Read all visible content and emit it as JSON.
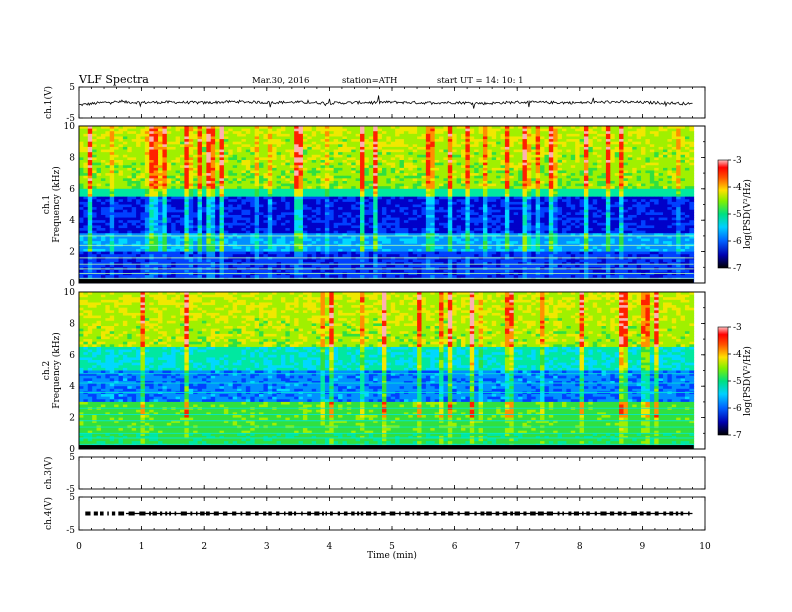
{
  "header": {
    "title": "VLF  Spectra",
    "date": "Mar.30, 2016",
    "station": "station=ATH",
    "start": "start  UT  =    14: 10: 1"
  },
  "chart_data": [
    {
      "type": "line",
      "name": "ch1-voltage",
      "ylabel": "ch.1(V)",
      "ylim": [
        -5,
        5
      ],
      "y_ticks": [
        "5",
        "-5"
      ],
      "x": [
        0,
        0.5,
        1,
        1.5,
        2,
        2.5,
        3,
        3.5,
        4,
        4.5,
        5,
        5.5,
        6,
        6.5,
        7,
        7.5,
        8,
        8.5,
        9,
        9.5,
        9.8
      ],
      "values": [
        -0.8,
        0.2,
        0.0,
        0.1,
        -0.1,
        0.3,
        0.0,
        0.1,
        -0.2,
        0.0,
        0.1,
        -0.1,
        0.0,
        -0.3,
        0.1,
        0.0,
        -0.1,
        0.2,
        0.0,
        -0.2,
        -0.5
      ]
    },
    {
      "type": "heatmap",
      "name": "ch1-spectrogram",
      "ylabel": "ch.1\nFrequency (kHz)",
      "ylim": [
        0,
        10
      ],
      "y_ticks": [
        "0",
        "2",
        "4",
        "6",
        "8",
        "10"
      ],
      "colorbar": {
        "label": "log(PSD(V²/Hz)",
        "range": [
          -7,
          -3
        ],
        "ticks": [
          "-3",
          "-4",
          "-5",
          "-6",
          "-7"
        ]
      }
    },
    {
      "type": "heatmap",
      "name": "ch2-spectrogram",
      "ylabel": "ch.2\nFrequency (kHz)",
      "ylim": [
        0,
        10
      ],
      "y_ticks": [
        "0",
        "2",
        "4",
        "6",
        "8",
        "10"
      ],
      "colorbar": {
        "label": "log(PSD(V²/Hz)",
        "range": [
          -7,
          -3
        ],
        "ticks": [
          "-3",
          "-4",
          "-5",
          "-6",
          "-7"
        ]
      }
    },
    {
      "type": "line",
      "name": "ch3-voltage",
      "ylabel": "ch.3(V)",
      "ylim": [
        -5,
        5
      ],
      "y_ticks": [
        "5",
        "-5"
      ]
    },
    {
      "type": "line",
      "name": "ch4-voltage",
      "ylabel": "ch.4(V)",
      "ylim": [
        -5,
        5
      ],
      "y_ticks": [
        "5",
        "-5"
      ],
      "values_const": 0
    }
  ],
  "x_axis": {
    "label": "Time  (min)",
    "xlim": [
      0,
      10
    ],
    "ticks": [
      "0",
      "1",
      "2",
      "3",
      "4",
      "5",
      "6",
      "7",
      "8",
      "9",
      "10"
    ]
  },
  "colors": {
    "colormap": [
      "#000000",
      "#0000a0",
      "#0030ff",
      "#00a0ff",
      "#00e0c0",
      "#20e040",
      "#a0f000",
      "#ffe000",
      "#ff7000",
      "#ff0000",
      "#ffb0b0"
    ]
  }
}
